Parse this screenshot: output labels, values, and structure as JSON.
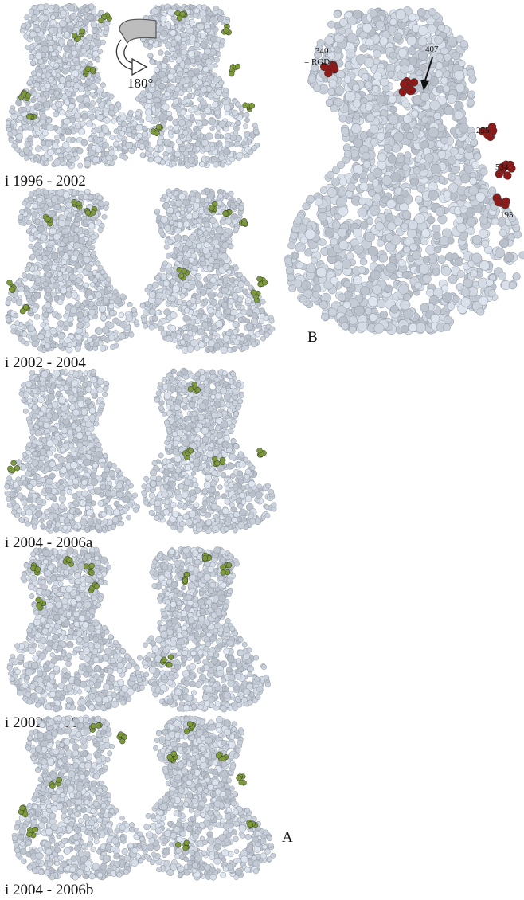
{
  "figure": {
    "panel_a_label": "A",
    "panel_b_label": "B",
    "rotation_label": "180°",
    "colors": {
      "atom": "#c9d0da",
      "atom_edge": "#8c96a3",
      "variable_site": "#7c9a3a",
      "marked_site": "#8f1a1a",
      "text": "#111111"
    },
    "rows": [
      {
        "label": "i 1996 - 2002"
      },
      {
        "label": "i 2002 - 2004"
      },
      {
        "label": "i 2004 - 2006a"
      },
      {
        "label": "i 2002 - 2006b"
      },
      {
        "label": "i 2004 - 2006b"
      }
    ],
    "panel_b_residues": [
      {
        "label": "340"
      },
      {
        "label": "= RGD"
      },
      {
        "label": "407"
      },
      {
        "label": "255"
      },
      {
        "label": "534"
      },
      {
        "label": "193"
      }
    ]
  }
}
